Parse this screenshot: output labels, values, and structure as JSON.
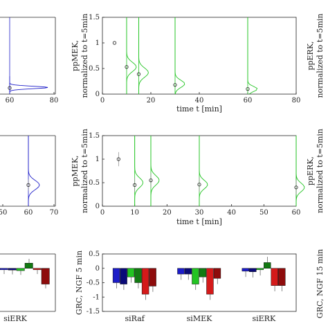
{
  "colors": {
    "blue": "#1c1cc8",
    "dark_blue": "#0a0a78",
    "green": "#22c422",
    "dark_green": "#127a12",
    "red": "#d41a1a",
    "dark_red": "#8e0c0c",
    "axis": "#222222"
  },
  "chart_data": [
    {
      "type": "scatter",
      "panel": "row1-left-partial",
      "xlim": [
        null,
        80
      ],
      "xticks": [
        "60",
        "80"
      ],
      "series": [
        {
          "color": "blue",
          "points": [
            {
              "x": 60,
              "y": 0.12
            }
          ]
        },
        {
          "color": "blue",
          "distribution_center": 72,
          "spread": 3,
          "peak_y": 0.13,
          "baseline_x": 60
        }
      ]
    },
    {
      "type": "scatter",
      "panel": "row1-middle",
      "xlabel": "time t [min]",
      "ylabel": "ppMEK, normalized to t=5min",
      "xlim": [
        0,
        80
      ],
      "ylim": [
        0,
        1.5
      ],
      "xticks": [
        "0",
        "20",
        "40",
        "60",
        "80"
      ],
      "yticks": [
        "0",
        "0.5",
        "1",
        "1.5"
      ],
      "points": [
        {
          "x": 5,
          "y": 1.0
        },
        {
          "x": 10,
          "y": 0.53
        },
        {
          "x": 15,
          "y": 0.39
        },
        {
          "x": 30,
          "y": 0.18
        },
        {
          "x": 60,
          "y": 0.1
        }
      ],
      "distributions": [
        {
          "baseline_x": 10,
          "center_y": 0.53,
          "spread_y": 0.09
        },
        {
          "baseline_x": 15,
          "center_y": 0.42,
          "spread_y": 0.09
        },
        {
          "baseline_x": 30,
          "center_y": 0.2,
          "spread_y": 0.07
        },
        {
          "baseline_x": 60,
          "center_y": 0.1,
          "spread_y": 0.05
        }
      ]
    },
    {
      "type": "scatter",
      "panel": "row1-right-label",
      "ylabel": "ppERK, normalized to t=5min"
    },
    {
      "type": "scatter",
      "panel": "row2-left-partial",
      "xlim": [
        50,
        70
      ],
      "xticks": [
        "50",
        "60",
        "70"
      ],
      "points": [
        {
          "x": 60,
          "y": 0.45
        }
      ],
      "distributions": [
        {
          "baseline_x": 60,
          "center_y": 0.45,
          "spread_y": 0.1
        }
      ]
    },
    {
      "type": "scatter",
      "panel": "row2-middle",
      "xlabel": "time t [min]",
      "ylabel": "ppMEK, normalized to t=5min",
      "xlim": [
        0,
        60
      ],
      "ylim": [
        0,
        1.5
      ],
      "xticks": [
        "0",
        "10",
        "20",
        "30",
        "40",
        "50",
        "60"
      ],
      "yticks": [
        "0",
        "0.5",
        "1",
        "1.5"
      ],
      "points": [
        {
          "x": 5,
          "y": 1.0
        },
        {
          "x": 10,
          "y": 0.45
        },
        {
          "x": 15,
          "y": 0.55
        },
        {
          "x": 30,
          "y": 0.46
        },
        {
          "x": 60,
          "y": 0.4
        }
      ],
      "distributions": [
        {
          "baseline_x": 10,
          "center_y": 0.5,
          "spread_y": 0.1
        },
        {
          "baseline_x": 15,
          "center_y": 0.55,
          "spread_y": 0.1
        },
        {
          "baseline_x": 30,
          "center_y": 0.46,
          "spread_y": 0.09
        },
        {
          "baseline_x": 60,
          "center_y": 0.4,
          "spread_y": 0.09
        }
      ]
    },
    {
      "type": "scatter",
      "panel": "row2-right-label",
      "ylabel": "ppERK, normalized to t=5min"
    },
    {
      "type": "bar",
      "panel": "row3-left-partial",
      "categories": [
        "siERK"
      ],
      "groups": [
        {
          "label": "siERK",
          "bars": [
            {
              "color": "blue",
              "value": -0.05
            },
            {
              "color": "dark_blue",
              "value": -0.06
            },
            {
              "color": "green",
              "value": -0.08
            },
            {
              "color": "dark_green",
              "value": 0.18
            },
            {
              "color": "red",
              "value": -0.05
            },
            {
              "color": "dark_red",
              "value": -0.55
            }
          ]
        }
      ]
    },
    {
      "type": "bar",
      "panel": "row3-middle",
      "ylabel": "GRC, NGF 5 min",
      "ylim": [
        -1.5,
        0.5
      ],
      "yticks": [
        "-1.5",
        "-1",
        "-0.5",
        "0",
        "0.5"
      ],
      "categories": [
        "siRaf",
        "siMEK",
        "siERK"
      ],
      "groups": [
        {
          "label": "siRaf",
          "bars": [
            {
              "color": "blue",
              "value": -0.5
            },
            {
              "color": "dark_blue",
              "value": -0.55
            },
            {
              "color": "green",
              "value": -0.3
            },
            {
              "color": "dark_green",
              "value": -0.5
            },
            {
              "color": "red",
              "value": -0.9
            },
            {
              "color": "dark_red",
              "value": -0.62
            }
          ]
        },
        {
          "label": "siMEK",
          "bars": [
            {
              "color": "blue",
              "value": -0.2
            },
            {
              "color": "dark_blue",
              "value": -0.2
            },
            {
              "color": "green",
              "value": -0.55
            },
            {
              "color": "dark_green",
              "value": -0.3
            },
            {
              "color": "red",
              "value": -0.9
            },
            {
              "color": "dark_red",
              "value": -0.35
            }
          ]
        },
        {
          "label": "siERK",
          "bars": [
            {
              "color": "blue",
              "value": -0.1
            },
            {
              "color": "dark_blue",
              "value": -0.12
            },
            {
              "color": "green",
              "value": -0.05
            },
            {
              "color": "dark_green",
              "value": 0.2
            },
            {
              "color": "red",
              "value": -0.6
            },
            {
              "color": "dark_red",
              "value": -0.6
            }
          ]
        }
      ]
    },
    {
      "type": "bar",
      "panel": "row3-right-label",
      "ylabel": "GRC, NGF 15 min"
    }
  ]
}
